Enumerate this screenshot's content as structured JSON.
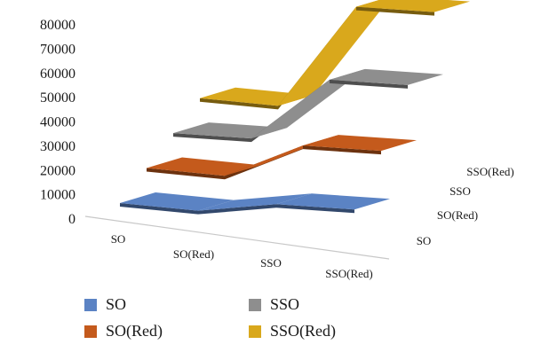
{
  "chart_data": {
    "type": "line",
    "subtype": "3d-line",
    "categories": [
      "SO",
      "SO(Red)",
      "SSO",
      "SSO(Red)"
    ],
    "y_ticks": [
      "0",
      "10000",
      "20000",
      "30000",
      "40000",
      "50000",
      "60000",
      "70000",
      "80000"
    ],
    "ylim": [
      0,
      80000
    ],
    "grid": false,
    "legend_position": "bottom",
    "series": [
      {
        "name": "SO",
        "color": "#5b83c4",
        "values": [
          3000,
          2000,
          7000,
          7000
        ]
      },
      {
        "name": "SO(Red)",
        "color": "#c45a1c",
        "values": [
          14000,
          13000,
          28000,
          28000
        ]
      },
      {
        "name": "SSO",
        "color": "#8e8e8e",
        "values": [
          25000,
          25000,
          52000,
          52000
        ]
      },
      {
        "name": "SSO(Red)",
        "color": "#d9a81c",
        "values": [
          36000,
          35000,
          79000,
          79000
        ]
      }
    ]
  }
}
